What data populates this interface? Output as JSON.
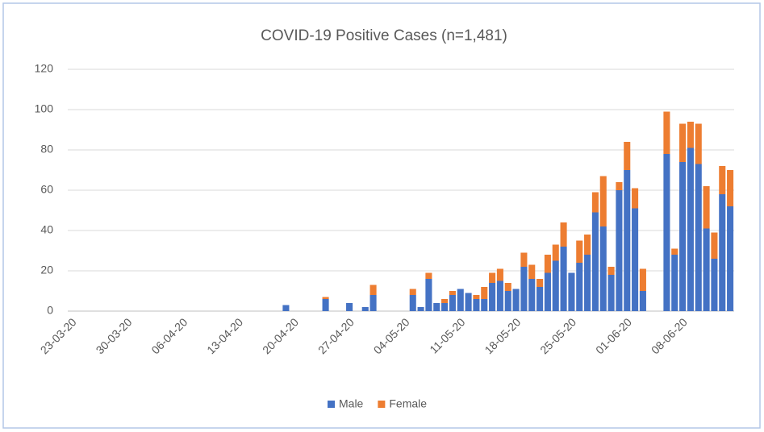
{
  "chart_data": {
    "type": "stacked_bar",
    "title": "COVID-19 Positive Cases (n=1,481)",
    "categories": [
      "23-03-20",
      null,
      null,
      null,
      null,
      null,
      null,
      "30-03-20",
      null,
      null,
      null,
      null,
      null,
      null,
      "06-04-20",
      null,
      null,
      null,
      null,
      null,
      null,
      "13-04-20",
      null,
      null,
      null,
      null,
      null,
      null,
      "20-04-20",
      null,
      null,
      null,
      null,
      null,
      null,
      "27-04-20",
      null,
      null,
      null,
      null,
      null,
      null,
      "04-05-20",
      null,
      null,
      null,
      null,
      null,
      null,
      "11-05-20",
      null,
      null,
      null,
      null,
      null,
      null,
      "18-05-20",
      null,
      null,
      null,
      null,
      null,
      null,
      "25-05-20",
      null,
      null,
      null,
      null,
      null,
      null,
      "01-06-20",
      null,
      null,
      null,
      null,
      null,
      null,
      "08-06-20",
      null,
      null,
      null,
      null,
      null,
      null
    ],
    "series": [
      {
        "name": "Male",
        "color": "#4472c4",
        "values": [
          0,
          0,
          0,
          0,
          0,
          0,
          0,
          0,
          0,
          0,
          0,
          0,
          0,
          0,
          0,
          0,
          0,
          0,
          0,
          0,
          0,
          0,
          0,
          0,
          0,
          0,
          0,
          3,
          0,
          0,
          0,
          0,
          6,
          0,
          0,
          4,
          0,
          2,
          8,
          0,
          0,
          0,
          0,
          8,
          2,
          16,
          4,
          4,
          8,
          11,
          9,
          6,
          6,
          14,
          15,
          10,
          11,
          22,
          16,
          12,
          19,
          25,
          32,
          19,
          24,
          28,
          49,
          42,
          18,
          60,
          70,
          51,
          10,
          0,
          0,
          78,
          28,
          74,
          81,
          73,
          41,
          26,
          58,
          52
        ]
      },
      {
        "name": "Female",
        "color": "#ed7d31",
        "values": [
          0,
          0,
          0,
          0,
          0,
          0,
          0,
          0,
          0,
          0,
          0,
          0,
          0,
          0,
          0,
          0,
          0,
          0,
          0,
          0,
          0,
          0,
          0,
          0,
          0,
          0,
          0,
          0,
          0,
          0,
          0,
          0,
          1,
          0,
          0,
          0,
          0,
          0,
          5,
          0,
          0,
          0,
          0,
          3,
          0,
          3,
          0,
          2,
          2,
          0,
          0,
          2,
          6,
          5,
          6,
          4,
          0,
          7,
          7,
          4,
          9,
          8,
          12,
          0,
          11,
          10,
          10,
          25,
          4,
          4,
          14,
          10,
          11,
          0,
          0,
          21,
          3,
          19,
          13,
          20,
          21,
          13,
          14,
          18
        ]
      }
    ],
    "ylim": [
      0,
      120
    ],
    "yticks": [
      0,
      20,
      40,
      60,
      80,
      100,
      120
    ],
    "grid": true,
    "legend": "bottom"
  }
}
